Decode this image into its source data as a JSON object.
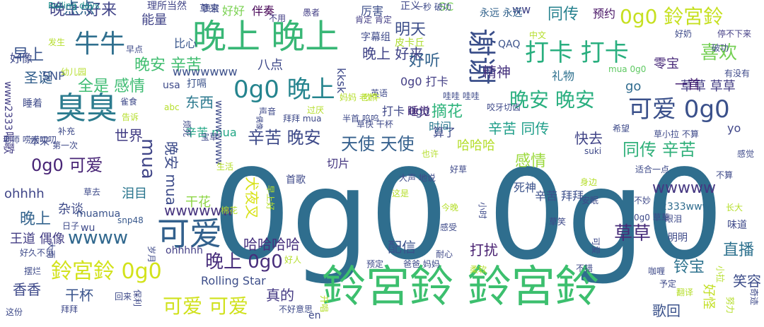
{
  "words": [
    {
      "text": "0g0 0g0",
      "color": "#2f6e8e"
    },
    {
      "text": "鈴宮鈴 鈴宮鈴",
      "color": "#3cbf6e"
    },
    {
      "text": "晚上 晚上",
      "color": "#38b776"
    },
    {
      "text": "臭臭",
      "color": "#2b7b8e"
    },
    {
      "text": "谢谢",
      "color": "#3b4f8a"
    },
    {
      "text": "可爱",
      "color": "#33618d"
    },
    {
      "text": "牛牛",
      "color": "#2f6f8e"
    },
    {
      "text": "打卡 打卡",
      "color": "#29af7f"
    },
    {
      "text": "可爱 0g0",
      "color": "#3b518b"
    },
    {
      "text": "0g0 晚上",
      "color": "#25848e"
    },
    {
      "text": "鈴宮鈴 0g0",
      "color": "#d2e21b"
    },
    {
      "text": "0g0 鈴宮鈴",
      "color": "#c6e021"
    },
    {
      "text": "晚安 晚安",
      "color": "#29af7f"
    },
    {
      "text": "可爱 可爱",
      "color": "#d0e11c"
    },
    {
      "text": "晚上 0g0",
      "color": "#472d7b"
    },
    {
      "text": "wwww",
      "color": "#31688e"
    },
    {
      "text": "辛苦 晚安",
      "color": "#3e4a89"
    },
    {
      "text": "晚上 好来",
      "color": "#404387"
    },
    {
      "text": "晚安 辛苦",
      "color": "#42be71"
    },
    {
      "text": "同传 辛苦",
      "color": "#30b07a"
    },
    {
      "text": "天使 天使",
      "color": "#35608d"
    },
    {
      "text": "0g0 可爱",
      "color": "#482576"
    },
    {
      "text": "草草",
      "color": "#472c7a"
    },
    {
      "text": "喜欢",
      "color": "#75d054"
    },
    {
      "text": "全是 感情",
      "color": "#3fbc73"
    },
    {
      "text": "wwwww",
      "color": "#453781"
    },
    {
      "text": "wwwwww",
      "color": "#46337e"
    },
    {
      "text": "mua",
      "color": "#404588"
    },
    {
      "text": "明天",
      "color": "#3d4e8a"
    },
    {
      "text": "摘花",
      "color": "#2fb47c"
    },
    {
      "text": "好听",
      "color": "#33638d"
    },
    {
      "text": "直播",
      "color": "#2d718e"
    },
    {
      "text": "早上",
      "color": "#3a548c"
    },
    {
      "text": "圣诞",
      "color": "#34608d"
    },
    {
      "text": "世界",
      "color": "#433e85"
    },
    {
      "text": "东西",
      "color": "#2a788e"
    },
    {
      "text": "感情",
      "color": "#9bd93c"
    },
    {
      "text": "快去",
      "color": "#414487"
    },
    {
      "text": "辛苦 同传",
      "color": "#1f9e89"
    },
    {
      "text": "晚安 mua",
      "color": "#3e4c8a"
    },
    {
      "text": "哈哈哈",
      "color": "#b5de2b"
    },
    {
      "text": "精神",
      "color": "#46327e"
    },
    {
      "text": "铃宝",
      "color": "#2c728e"
    },
    {
      "text": "晚上",
      "color": "#33638d"
    },
    {
      "text": "香香",
      "color": "#3e4989"
    },
    {
      "text": "干杯",
      "color": "#3a548c"
    },
    {
      "text": "真的",
      "color": "#443983"
    },
    {
      "text": "杂谈",
      "color": "#3e4a89"
    },
    {
      "text": "干花",
      "color": "#8ed645"
    },
    {
      "text": "犬夜叉",
      "color": "#d8e219"
    },
    {
      "text": "配信",
      "color": "#3b518b"
    },
    {
      "text": "打扰",
      "color": "#482071"
    },
    {
      "text": "歌回",
      "color": "#3b528b"
    },
    {
      "text": "笑容",
      "color": "#3d4d8a"
    },
    {
      "text": "好怪",
      "color": "#c2df23"
    },
    {
      "text": "一点点",
      "color": "#31668e"
    },
    {
      "text": "晚上 好来",
      "color": "#404387"
    },
    {
      "text": "零宝",
      "color": "#482979"
    },
    {
      "text": "草草 草草",
      "color": "#433d84"
    },
    {
      "text": "辛苦 mua",
      "color": "#21a685"
    },
    {
      "text": "ohhhh",
      "color": "#404688"
    },
    {
      "text": "王道 偶像",
      "color": "#433d84"
    },
    {
      "text": "泪目",
      "color": "#2a768e"
    },
    {
      "text": "八点",
      "color": "#3e4989"
    },
    {
      "text": "哈哈哈哈",
      "color": "#46307e"
    },
    {
      "text": "死神",
      "color": "#3b528b"
    },
    {
      "text": "Rolling Star",
      "color": "#3d4e8a"
    },
    {
      "text": "辛苦 拜拜",
      "color": "#3c508b"
    },
    {
      "text": "时间",
      "color": "#2a788e"
    },
    {
      "text": "同传",
      "color": "#26818e"
    },
    {
      "text": "ww",
      "color": "#414487"
    },
    {
      "text": "预约",
      "color": "#471365"
    },
    {
      "text": "厉害",
      "color": "#3d4e8a"
    },
    {
      "text": "能量",
      "color": "#404387"
    },
    {
      "text": "比心",
      "color": "#39568c"
    },
    {
      "text": "好像",
      "color": "#3e4989"
    },
    {
      "text": "SNP",
      "color": "#3b528b"
    },
    {
      "text": "切片",
      "color": "#453781"
    },
    {
      "text": "0g0 打卡",
      "color": "#433e85"
    },
    {
      "text": "打卡 0g0",
      "color": "#3f4788"
    },
    {
      "text": "睡觉",
      "color": "#482878"
    },
    {
      "text": "算了",
      "color": "#3e4a89"
    },
    {
      "text": "礼物",
      "color": "#2d708e"
    },
    {
      "text": "一首",
      "color": "#482374"
    },
    {
      "text": "go",
      "color": "#2f6b8e"
    },
    {
      "text": "yo",
      "color": "#404688"
    },
    {
      "text": "唱歌",
      "color": "#433d84"
    },
    {
      "text": "正义",
      "color": "#3f4788"
    },
    {
      "text": "好好",
      "color": "#7ad151"
    },
    {
      "text": "伴奏",
      "color": "#440154"
    },
    {
      "text": "wwwwwww",
      "color": "#3c508b"
    },
    {
      "text": "ohhhhh",
      "color": "#433e85"
    },
    {
      "text": "muamua",
      "color": "#3a538b"
    },
    {
      "text": "2333www",
      "color": "#2f6c8e"
    },
    {
      "text": "kksk",
      "color": "#3e4989"
    },
    {
      "text": "snp48",
      "color": "#38588c"
    },
    {
      "text": "wu",
      "color": "#3e4a89"
    },
    {
      "text": "Rolling days",
      "color": "#21918c"
    },
    {
      "text": "QAQ",
      "color": "#3b528b"
    },
    {
      "text": "en",
      "color": "#3e4989"
    },
    {
      "text": "SC",
      "color": "#75d054"
    },
    {
      "text": "www2333",
      "color": "#433e85"
    },
    {
      "text": "usa",
      "color": "#3e4a89"
    },
    {
      "text": "abc",
      "color": "#b5de2b"
    },
    {
      "text": "mua 0g0",
      "color": "#5ec962"
    },
    {
      "text": "草来",
      "color": "#3e4989"
    },
    {
      "text": "理所当然",
      "color": "#414487"
    },
    {
      "text": "喷宫",
      "color": "#3e4a89"
    },
    {
      "text": "不用",
      "color": "#433e85"
    },
    {
      "text": "一秒 破功",
      "color": "#3e4a89"
    },
    {
      "text": "永远 永远",
      "color": "#33638d"
    },
    {
      "text": "愚者",
      "color": "#433e85"
    },
    {
      "text": "肯定 肯定",
      "color": "#433e85"
    },
    {
      "text": "字幕组",
      "color": "#3e4989"
    },
    {
      "text": "皮卡丘",
      "color": "#addc30"
    },
    {
      "text": "好奶",
      "color": "#3e4a89"
    },
    {
      "text": "停不下来",
      "color": "#433e85"
    },
    {
      "text": "中文",
      "color": "#b5de2b"
    },
    {
      "text": "破功",
      "color": "#3e4a89"
    },
    {
      "text": "有没有",
      "color": "#3e4989"
    },
    {
      "text": "发生",
      "color": "#b5de2b"
    },
    {
      "text": "幼儿园",
      "color": "#b5de2b"
    },
    {
      "text": "早点",
      "color": "#3e4a89"
    },
    {
      "text": "打嗝",
      "color": "#3b528b"
    },
    {
      "text": "英语",
      "color": "#3e4989"
    },
    {
      "text": "吹牛",
      "color": "#b5de2b"
    },
    {
      "text": "哇哇 哇哇",
      "color": "#3e4a89"
    },
    {
      "text": "咬牙切齿",
      "color": "#3e4989"
    },
    {
      "text": "睡着",
      "color": "#3e4a89"
    },
    {
      "text": "雀食",
      "color": "#3e4989"
    },
    {
      "text": "告诉",
      "color": "#b5de2b"
    },
    {
      "text": "wwwwwwww",
      "color": "#3e4a89"
    },
    {
      "text": "声音",
      "color": "#3e4989"
    },
    {
      "text": "过厌",
      "color": "#b5de2b"
    },
    {
      "text": "拜拜 mua",
      "color": "#3e4a89"
    },
    {
      "text": "妈妈 老师",
      "color": "#b5de2b"
    },
    {
      "text": "半首 呜呜",
      "color": "#3e4a89"
    },
    {
      "text": "草快 干杯",
      "color": "#3e4989"
    },
    {
      "text": "希望",
      "color": "#3e4a89"
    },
    {
      "text": "草小拉 不算",
      "color": "#3e4989"
    },
    {
      "text": "补充",
      "color": "#3e4a89"
    },
    {
      "text": "第一次",
      "color": "#3e4989"
    },
    {
      "text": "本来",
      "color": "#3e4a89"
    },
    {
      "text": "老师 唠唠叨叨",
      "color": "#3e4989"
    },
    {
      "text": "烦死",
      "color": "#3e4a89"
    },
    {
      "text": "宝草",
      "color": "#3e4989"
    },
    {
      "text": "偶像",
      "color": "#3e4a89"
    },
    {
      "text": "也许",
      "color": "#b5de2b"
    },
    {
      "text": "suki",
      "color": "#3e4989"
    },
    {
      "text": "感觉",
      "color": "#3e4a89"
    },
    {
      "text": "生活",
      "color": "#b5de2b"
    },
    {
      "text": "好草",
      "color": "#3e4989"
    },
    {
      "text": "适合一点",
      "color": "#3e4a89"
    },
    {
      "text": "不算",
      "color": "#3e4989"
    },
    {
      "text": "大声 地说",
      "color": "#3e4a89"
    },
    {
      "text": "首歌",
      "color": "#3e4989"
    },
    {
      "text": "这是",
      "color": "#b5de2b"
    },
    {
      "text": "草去",
      "color": "#3e4a89"
    },
    {
      "text": "棉花",
      "color": "#b5de2b"
    },
    {
      "text": "早上好",
      "color": "#b5de2b"
    },
    {
      "text": "日子",
      "color": "#3e4989"
    },
    {
      "text": "安眠",
      "color": "#3e4a89"
    },
    {
      "text": "不妙",
      "color": "#3e4989"
    },
    {
      "text": "长大",
      "color": "#b5de2b"
    },
    {
      "text": "今晚",
      "color": "#b5de2b"
    },
    {
      "text": "小时",
      "color": "#3e4a89"
    },
    {
      "text": "草笑",
      "color": "#3e4989"
    },
    {
      "text": "0g0 草草",
      "color": "#3e4a89"
    },
    {
      "text": "眼泪",
      "color": "#3e4989"
    },
    {
      "text": "感受",
      "color": "#3e4a89"
    },
    {
      "text": "味道",
      "color": "#3e4989"
    },
    {
      "text": "明明",
      "color": "#3e4a89"
    },
    {
      "text": "可爱",
      "color": "#3e4989"
    },
    {
      "text": "好久不见",
      "color": "#3e4a89"
    },
    {
      "text": "大雨",
      "color": "#3e4989"
    },
    {
      "text": "岁月",
      "color": "#3e4a89"
    },
    {
      "text": "耐心",
      "color": "#3e4989"
    },
    {
      "text": "摆烂",
      "color": "#3e4a89"
    },
    {
      "text": "好人",
      "color": "#b5de2b"
    },
    {
      "text": "预定",
      "color": "#3e4989"
    },
    {
      "text": "爸爸 妈妈",
      "color": "#3e4a89"
    },
    {
      "text": "不错",
      "color": "#3e4989"
    },
    {
      "text": "咖喱",
      "color": "#3e4a89"
    },
    {
      "text": "予定",
      "color": "#3e4989"
    },
    {
      "text": "小拉",
      "color": "#b5de2b"
    },
    {
      "text": "柔软",
      "color": "#b5de2b"
    },
    {
      "text": "回来",
      "color": "#3e4a89"
    },
    {
      "text": "翻译",
      "color": "#b5de2b"
    },
    {
      "text": "保利",
      "color": "#3e4989"
    },
    {
      "text": "这份",
      "color": "#3e4a89"
    },
    {
      "text": "拜拜",
      "color": "#3e4989"
    },
    {
      "text": "不好意思",
      "color": "#3e4a89"
    },
    {
      "text": "开唱",
      "color": "#b5de2b"
    },
    {
      "text": "努力",
      "color": "#b5de2b"
    },
    {
      "text": "奇迹",
      "color": "#3e4989"
    },
    {
      "text": "身边",
      "color": "#b5de2b"
    },
    {
      "text": "唱法",
      "color": "#3e4a89"
    },
    {
      "text": "天空",
      "color": "#b5de2b"
    }
  ]
}
